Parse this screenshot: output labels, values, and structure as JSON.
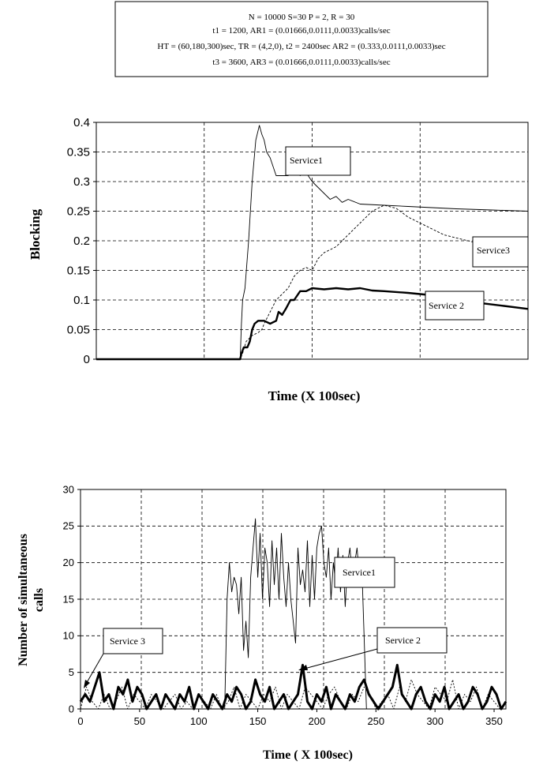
{
  "params": {
    "line1": "N = 10000      S=30 P = 2, R = 30",
    "line2": "t1 = 1200, AR1 = (0.01666,0.0111,0.0033)calls/sec",
    "line3": "HT = (60,180,300)sec,  TR = (4,2,0), t2 = 2400sec AR2 = (0.333,0.0111,0.0033)sec",
    "line4": "t3 = 3600, AR3 = (0.01666,0.0111,0.0033)calls/sec"
  },
  "chart_data": [
    {
      "type": "line",
      "xlabel": "Time (X 100sec)",
      "ylabel": "Blocking",
      "ylim": [
        0,
        0.4
      ],
      "xlim": [
        0,
        360
      ],
      "yticks": [
        "0",
        "0.05",
        "0.1",
        "0.15",
        "0.2",
        "0.25",
        "0.3",
        "0.35",
        "0.4"
      ],
      "grid": true,
      "series": [
        {
          "name": "Service1",
          "x": [
            0,
            120,
            121,
            122,
            124,
            127,
            130,
            133,
            136,
            138,
            140,
            142,
            145,
            150,
            155,
            160,
            165,
            170,
            175,
            180,
            185,
            190,
            195,
            200,
            205,
            210,
            220,
            240,
            260,
            280,
            300,
            330,
            360
          ],
          "y": [
            0,
            0,
            0.06,
            0.1,
            0.12,
            0.2,
            0.3,
            0.37,
            0.395,
            0.38,
            0.37,
            0.35,
            0.34,
            0.31,
            0.31,
            0.31,
            0.32,
            0.31,
            0.315,
            0.3,
            0.29,
            0.28,
            0.27,
            0.275,
            0.265,
            0.27,
            0.262,
            0.26,
            0.258,
            0.256,
            0.254,
            0.252,
            0.25
          ]
        },
        {
          "name": "Service 2",
          "x": [
            0,
            120,
            121,
            123,
            126,
            128,
            130,
            132,
            135,
            140,
            145,
            150,
            152,
            155,
            158,
            162,
            165,
            170,
            175,
            180,
            190,
            200,
            210,
            220,
            230,
            240,
            260,
            280,
            300,
            320,
            340,
            360
          ],
          "y": [
            0,
            0,
            0.01,
            0.02,
            0.02,
            0.03,
            0.05,
            0.06,
            0.065,
            0.065,
            0.06,
            0.065,
            0.08,
            0.075,
            0.085,
            0.1,
            0.1,
            0.115,
            0.115,
            0.12,
            0.118,
            0.12,
            0.118,
            0.12,
            0.116,
            0.115,
            0.112,
            0.108,
            0.1,
            0.095,
            0.09,
            0.085
          ]
        },
        {
          "name": "Service3",
          "x": [
            0,
            120,
            122,
            125,
            130,
            135,
            138,
            140,
            145,
            150,
            160,
            165,
            170,
            175,
            180,
            185,
            190,
            195,
            200,
            205,
            210,
            215,
            220,
            230,
            240,
            250,
            260,
            270,
            280,
            290,
            300,
            310,
            320,
            330,
            340,
            360
          ],
          "y": [
            0,
            0,
            0.01,
            0.03,
            0.04,
            0.045,
            0.05,
            0.06,
            0.08,
            0.1,
            0.12,
            0.14,
            0.15,
            0.155,
            0.15,
            0.17,
            0.18,
            0.185,
            0.19,
            0.2,
            0.21,
            0.22,
            0.23,
            0.25,
            0.26,
            0.255,
            0.24,
            0.23,
            0.22,
            0.21,
            0.205,
            0.2,
            0.195,
            0.19,
            0.18,
            0.17
          ]
        }
      ],
      "annotations": [
        "Service1",
        "Service3",
        "Service 2"
      ]
    },
    {
      "type": "line",
      "xlabel": "Time ( X 100sec)",
      "ylabel": "Number of simultaneous calls",
      "ylim": [
        0,
        30
      ],
      "xlim": [
        0,
        360
      ],
      "yticks": [
        "0",
        "5",
        "10",
        "15",
        "20",
        "25",
        "30"
      ],
      "xticks": [
        "0",
        "50",
        "100",
        "150",
        "200",
        "250",
        "300",
        "350"
      ],
      "grid": true,
      "series": [
        {
          "name": "Service1",
          "x": [
            0,
            122,
            124,
            126,
            128,
            130,
            132,
            134,
            136,
            138,
            140,
            142,
            144,
            146,
            148,
            150,
            152,
            154,
            156,
            158,
            160,
            162,
            164,
            166,
            168,
            170,
            172,
            174,
            176,
            178,
            180,
            182,
            184,
            186,
            188,
            190,
            192,
            194,
            196,
            198,
            200,
            202,
            204,
            206,
            208,
            210,
            212,
            214,
            216,
            218,
            220,
            222,
            224,
            226,
            228,
            230,
            232,
            234,
            236,
            238,
            240,
            242,
            360
          ],
          "y": [
            0,
            0,
            15,
            20,
            16,
            18,
            17,
            13,
            18,
            8,
            12,
            7,
            18,
            22,
            26,
            18,
            24,
            15,
            22,
            20,
            14,
            23,
            17,
            22,
            15,
            24,
            18,
            14,
            20,
            15,
            12,
            9,
            22,
            17,
            19,
            16,
            23,
            14,
            21,
            15,
            22,
            24,
            25,
            20,
            18,
            22,
            15,
            20,
            17,
            22,
            16,
            21,
            14,
            20,
            22,
            18,
            20,
            22,
            18,
            20,
            10,
            0,
            0
          ]
        },
        {
          "name": "Service 2",
          "x": [
            0,
            4,
            8,
            12,
            16,
            20,
            24,
            28,
            32,
            36,
            40,
            44,
            48,
            52,
            56,
            60,
            64,
            68,
            72,
            76,
            80,
            84,
            88,
            92,
            96,
            100,
            104,
            108,
            112,
            116,
            120,
            124,
            128,
            132,
            136,
            140,
            144,
            148,
            152,
            156,
            160,
            164,
            168,
            172,
            176,
            180,
            184,
            188,
            192,
            196,
            200,
            204,
            208,
            212,
            216,
            220,
            224,
            228,
            232,
            236,
            240,
            244,
            248,
            252,
            256,
            260,
            264,
            268,
            272,
            276,
            280,
            284,
            288,
            292,
            296,
            300,
            304,
            308,
            312,
            316,
            320,
            324,
            328,
            332,
            336,
            340,
            344,
            348,
            352,
            356,
            360
          ],
          "y": [
            1,
            2,
            1,
            3,
            5,
            1,
            2,
            0,
            3,
            2,
            4,
            1,
            3,
            2,
            0,
            1,
            2,
            0,
            2,
            1,
            0,
            2,
            1,
            3,
            0,
            2,
            1,
            0,
            2,
            1,
            0,
            2,
            1,
            3,
            2,
            0,
            1,
            4,
            2,
            1,
            3,
            0,
            1,
            2,
            0,
            1,
            2,
            6,
            1,
            0,
            2,
            1,
            3,
            0,
            2,
            1,
            0,
            2,
            1,
            3,
            4,
            2,
            1,
            0,
            1,
            2,
            3,
            6,
            2,
            1,
            0,
            2,
            3,
            1,
            0,
            2,
            1,
            3,
            0,
            1,
            2,
            0,
            1,
            3,
            2,
            0,
            1,
            3,
            2,
            0,
            1
          ]
        },
        {
          "name": "Service 3",
          "x": [
            0,
            5,
            10,
            15,
            20,
            25,
            30,
            35,
            40,
            45,
            50,
            55,
            60,
            65,
            70,
            75,
            80,
            85,
            90,
            95,
            100,
            105,
            110,
            115,
            120,
            125,
            130,
            135,
            140,
            145,
            150,
            155,
            160,
            165,
            170,
            175,
            180,
            185,
            190,
            195,
            200,
            205,
            210,
            215,
            220,
            225,
            230,
            235,
            240,
            245,
            250,
            255,
            260,
            265,
            270,
            275,
            280,
            285,
            290,
            295,
            300,
            305,
            310,
            315,
            320,
            325,
            330,
            335,
            340,
            345,
            350,
            355,
            360
          ],
          "y": [
            0,
            3,
            1,
            0,
            2,
            0,
            1,
            3,
            0,
            2,
            1,
            0,
            2,
            1,
            0,
            1,
            2,
            0,
            1,
            0,
            2,
            1,
            0,
            2,
            0,
            1,
            3,
            0,
            2,
            1,
            0,
            2,
            1,
            3,
            0,
            2,
            1,
            0,
            3,
            2,
            1,
            0,
            2,
            3,
            1,
            0,
            2,
            1,
            3,
            2,
            0,
            1,
            2,
            0,
            3,
            1,
            4,
            2,
            1,
            0,
            3,
            2,
            1,
            4,
            0,
            2,
            1,
            3,
            0,
            2,
            1,
            0,
            1
          ]
        }
      ],
      "annotations": [
        "Service1",
        "Service 2",
        "Service 3"
      ]
    }
  ]
}
